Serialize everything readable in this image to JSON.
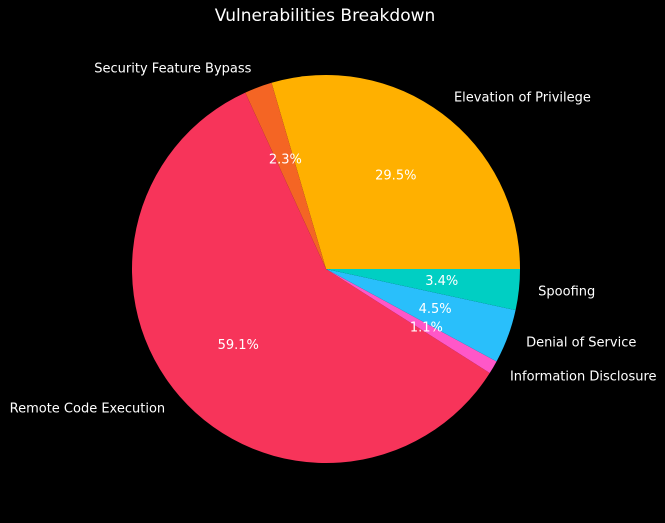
{
  "chart_data": {
    "type": "pie",
    "title": "Vulnerabilities Breakdown",
    "start_angle_deg": 0,
    "direction": "counterclockwise",
    "categories": [
      "Elevation of Privilege",
      "Security Feature Bypass",
      "Remote Code Execution",
      "Information Disclosure",
      "Denial of Service",
      "Spoofing"
    ],
    "values": [
      29.5,
      2.3,
      59.1,
      1.1,
      4.5,
      3.4
    ],
    "value_labels": [
      "29.5%",
      "2.3%",
      "59.1%",
      "1.1%",
      "4.5%",
      "3.4%"
    ],
    "colors": [
      "#FFB000",
      "#F46524",
      "#F7345A",
      "#FF57C8",
      "#29BFFB",
      "#00CFC3"
    ],
    "background": "#000000",
    "text_color": "#FFFFFF"
  }
}
